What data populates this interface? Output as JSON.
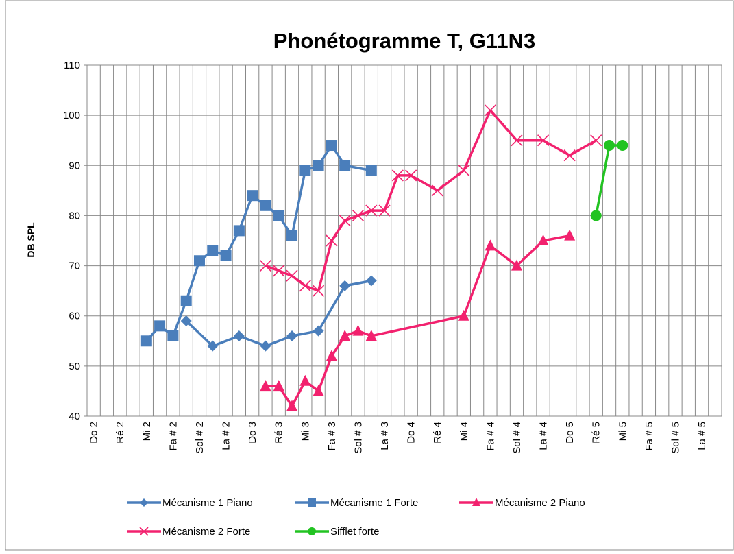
{
  "chart_data": {
    "type": "line",
    "title": "Phonétogramme T, G11N3",
    "ylabel": "DB SPL",
    "categories": [
      "Do 2",
      null,
      "Ré 2",
      null,
      "Mi 2",
      null,
      "Fa # 2",
      null,
      "Sol # 2",
      null,
      "La # 2",
      null,
      "Do 3",
      null,
      "Ré 3",
      null,
      "Mi 3",
      null,
      "Fa # 3",
      null,
      "Sol # 3",
      null,
      "La # 3",
      null,
      "Do 4",
      null,
      "Ré 4",
      null,
      "Mi 4",
      null,
      "Fa # 4",
      null,
      "Sol # 4",
      null,
      "La # 4",
      null,
      "Do 5",
      null,
      "Ré 5",
      null,
      "Mi 5",
      null,
      "Fa # 5",
      null,
      "Sol # 5",
      null,
      "La # 5",
      null
    ],
    "ylim": [
      40,
      110
    ],
    "yticks": [
      40,
      50,
      60,
      70,
      80,
      90,
      100,
      110
    ],
    "grid": true,
    "legend": "bottom",
    "series": [
      {
        "name": "Mécanisme 1 Piano",
        "color": "#4a7ebb",
        "marker": "diamond",
        "values": [
          null,
          null,
          null,
          null,
          null,
          null,
          null,
          59,
          null,
          54,
          null,
          56,
          null,
          54,
          null,
          56,
          null,
          57,
          null,
          66,
          null,
          67,
          null,
          null,
          null,
          null,
          null,
          null,
          null,
          null,
          null,
          null,
          null,
          null,
          null,
          null,
          null,
          null,
          null,
          null,
          null,
          null,
          null,
          null,
          null,
          null,
          null,
          null
        ]
      },
      {
        "name": "Mécanisme 1 Forte",
        "color": "#4a7ebb",
        "marker": "square",
        "values": [
          null,
          null,
          null,
          null,
          55,
          58,
          56,
          63,
          71,
          73,
          72,
          77,
          84,
          82,
          80,
          76,
          89,
          90,
          94,
          90,
          null,
          89,
          null,
          null,
          null,
          null,
          null,
          null,
          null,
          null,
          null,
          null,
          null,
          null,
          null,
          null,
          null,
          null,
          null,
          null,
          null,
          null,
          null,
          null,
          null,
          null,
          null,
          null
        ]
      },
      {
        "name": "Mécanisme 2 Piano",
        "color": "#f2216e",
        "marker": "triangle",
        "values": [
          null,
          null,
          null,
          null,
          null,
          null,
          null,
          null,
          null,
          null,
          null,
          null,
          null,
          46,
          46,
          42,
          47,
          45,
          52,
          56,
          57,
          56,
          null,
          null,
          null,
          null,
          null,
          null,
          60,
          null,
          74,
          null,
          70,
          null,
          75,
          null,
          76,
          null,
          null,
          null,
          null,
          null,
          null,
          null,
          null,
          null,
          null,
          null
        ]
      },
      {
        "name": "Mécanisme 2 Forte",
        "color": "#f2216e",
        "marker": "x",
        "values": [
          null,
          null,
          null,
          null,
          null,
          null,
          null,
          null,
          null,
          null,
          null,
          null,
          null,
          70,
          69,
          68,
          66,
          65,
          75,
          79,
          80,
          81,
          81,
          88,
          88,
          null,
          85,
          null,
          89,
          null,
          101,
          null,
          95,
          null,
          95,
          null,
          92,
          null,
          95,
          null,
          null,
          null,
          null,
          null,
          null,
          null,
          null,
          null
        ]
      },
      {
        "name": "Sifflet forte",
        "color": "#22c322",
        "marker": "circle",
        "values": [
          null,
          null,
          null,
          null,
          null,
          null,
          null,
          null,
          null,
          null,
          null,
          null,
          null,
          null,
          null,
          null,
          null,
          null,
          null,
          null,
          null,
          null,
          null,
          null,
          null,
          null,
          null,
          null,
          null,
          null,
          null,
          null,
          null,
          null,
          null,
          null,
          null,
          null,
          80,
          94,
          94,
          null,
          null,
          null,
          null,
          null,
          null,
          null
        ]
      }
    ]
  }
}
